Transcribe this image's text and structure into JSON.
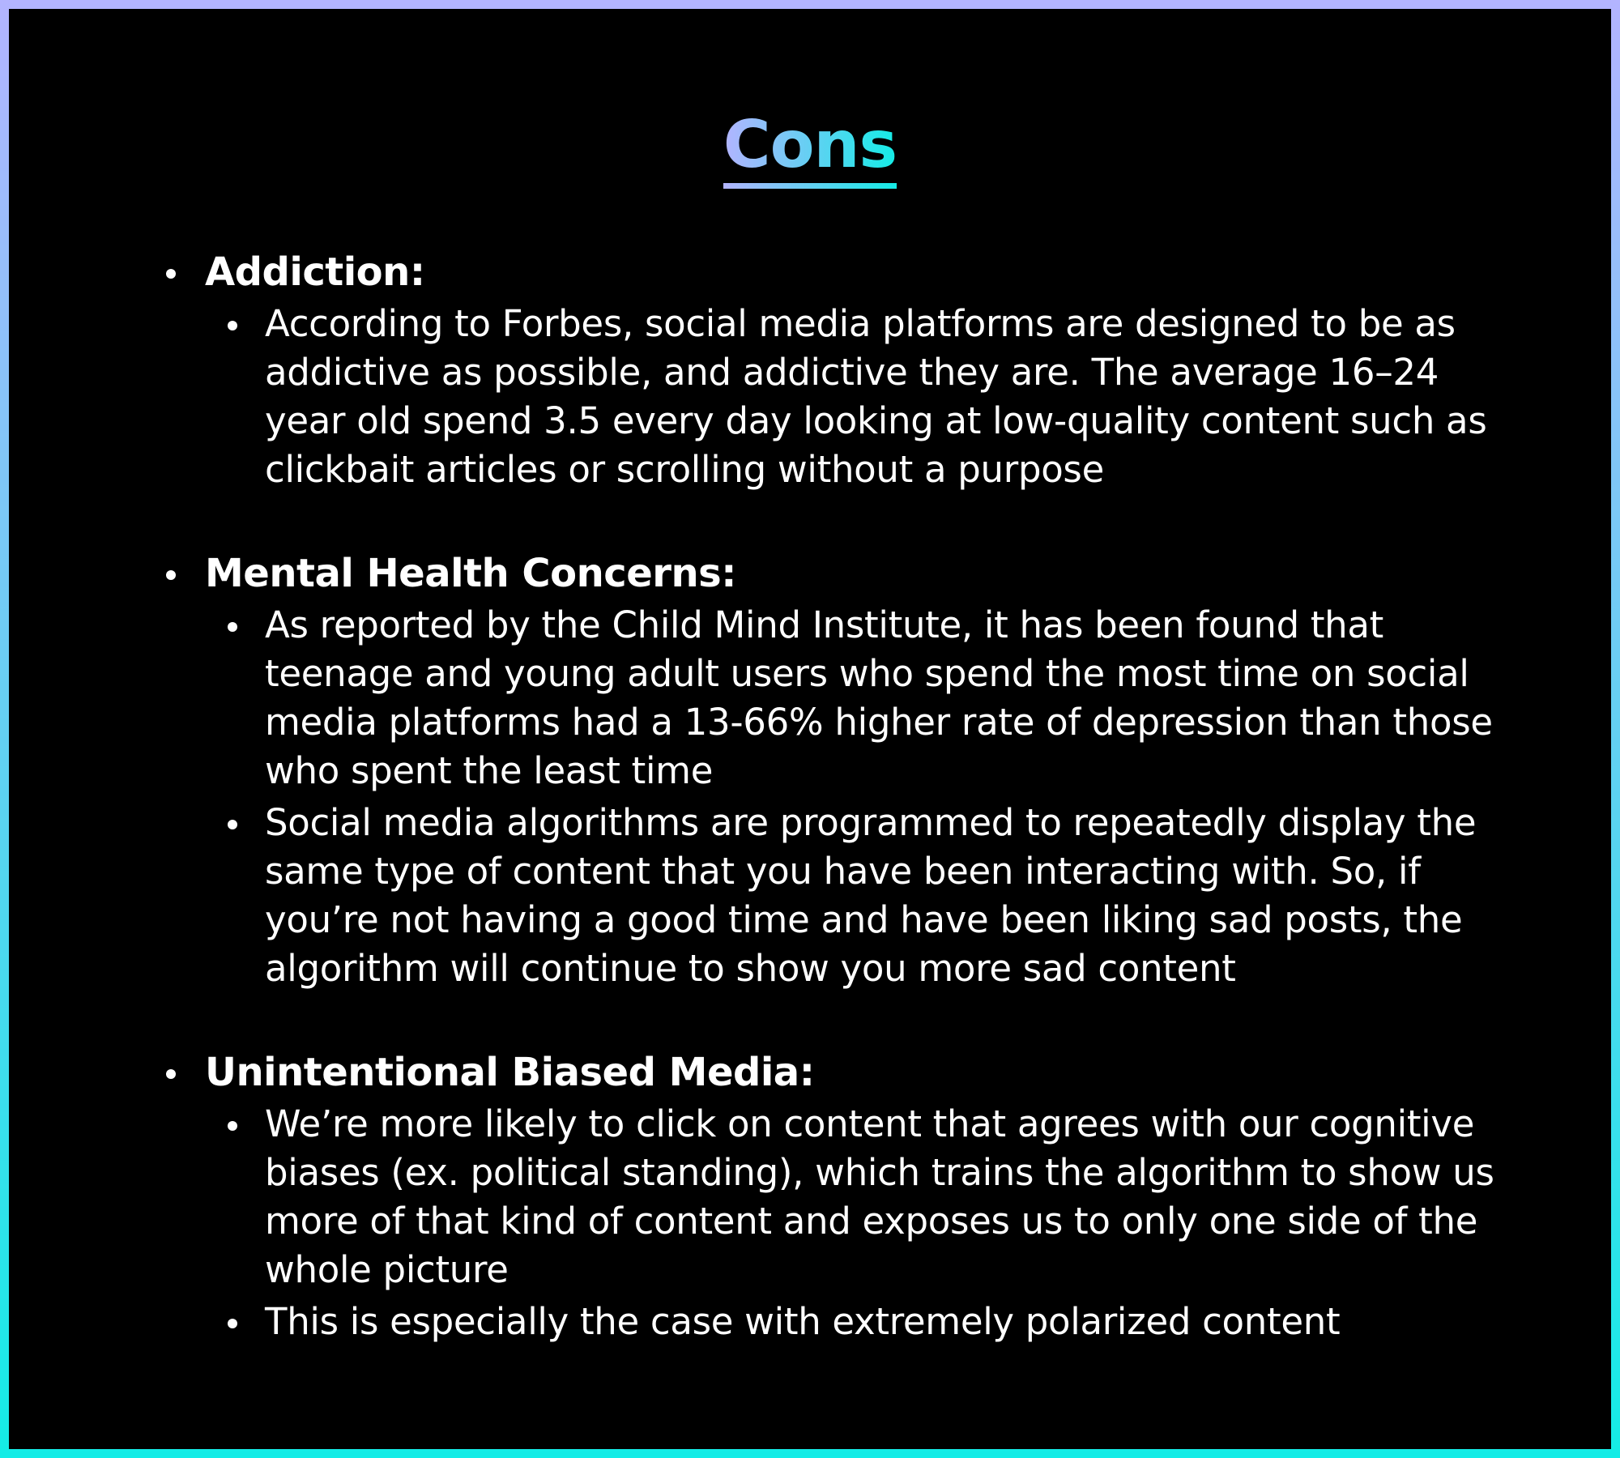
{
  "title": "Cons",
  "colors": {
    "border_top": "#b3b4ff",
    "border_bottom": "#14ece6",
    "title_gradient_start": "#b3b4ff",
    "title_gradient_end": "#14ece6",
    "background": "#000000",
    "text": "#ffffff"
  },
  "sections": [
    {
      "heading": "Addiction:",
      "items": [
        "According to Forbes, social media platforms are designed to be as addictive as possible, and addictive they are. The average 16–24 year old spend 3.5 every day looking at low-quality content such as clickbait articles or scrolling without a purpose"
      ]
    },
    {
      "heading": "Mental Health Concerns:",
      "items": [
        "As reported by the Child Mind Institute, it has been found that teenage and young adult users who spend the most time on social media platforms had a 13-66% higher rate of depression than those who spent the least time",
        "Social media algorithms are programmed to repeatedly display the same type of content that you have been interacting with. So, if you’re not having a good time and have been liking sad posts, the algorithm will continue to show you more sad content"
      ]
    },
    {
      "heading": "Unintentional Biased Media:",
      "items": [
        "We’re more likely to click on content that agrees with our cognitive biases (ex. political standing), which trains the algorithm to show us more of that kind of content and exposes us to only one side of the whole picture",
        "This is especially the case with extremely polarized content"
      ]
    }
  ]
}
